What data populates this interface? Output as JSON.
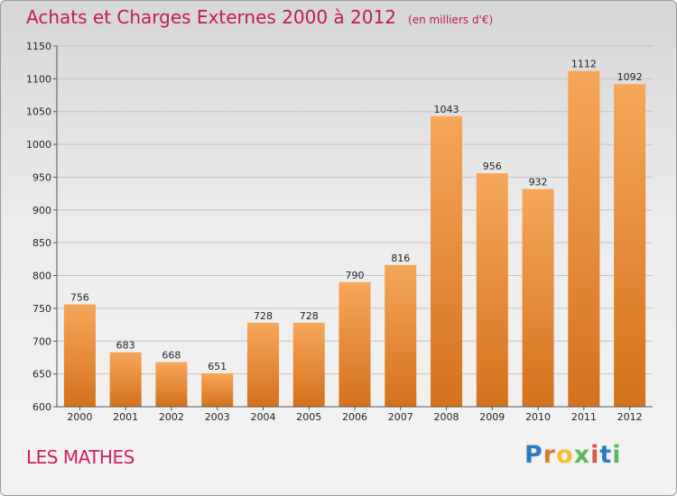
{
  "header": {
    "title": "Achats et Charges Externes 2000 à 2012",
    "unit": "(en milliers d'€)"
  },
  "footer": {
    "commune": "LES MATHES",
    "logo_letters": [
      "P",
      "r",
      "o",
      "x",
      "i",
      "t",
      "i"
    ],
    "logo_colors": [
      "#2b7bc0",
      "#e8772e",
      "#f2c12e",
      "#5cb85c",
      "#d9534f",
      "#2b7bc0",
      "#5cb85c"
    ]
  },
  "chart_data": {
    "type": "bar",
    "title": "Achats et Charges Externes 2000 à 2012",
    "categories": [
      "2000",
      "2001",
      "2002",
      "2003",
      "2004",
      "2005",
      "2006",
      "2007",
      "2008",
      "2009",
      "2010",
      "2011",
      "2012"
    ],
    "values": [
      756,
      683,
      668,
      651,
      728,
      728,
      790,
      816,
      1043,
      956,
      932,
      1112,
      1092
    ],
    "ylim": [
      600,
      1150
    ],
    "yticks": [
      600,
      650,
      700,
      750,
      800,
      850,
      900,
      950,
      1000,
      1050,
      1100,
      1150
    ],
    "grid": true,
    "bar_color_top": "#f6a75a",
    "bar_color_bottom": "#d4711d"
  }
}
